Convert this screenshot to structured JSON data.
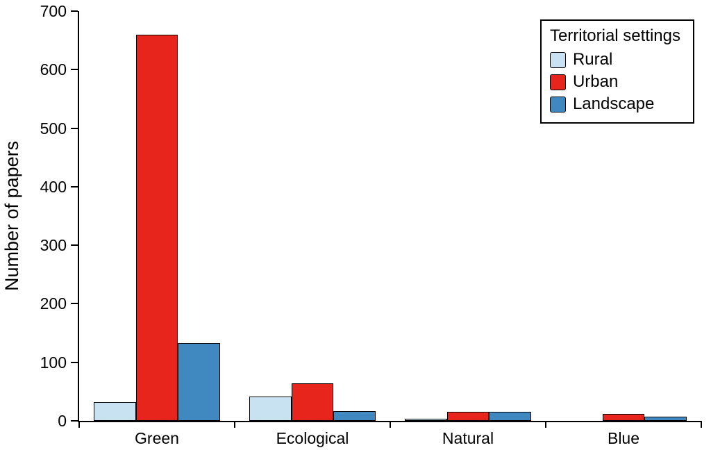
{
  "chart_data": {
    "type": "bar",
    "title": "",
    "xlabel": "",
    "ylabel": "Number of papers",
    "ylim": [
      0,
      700
    ],
    "yticks": [
      0,
      100,
      200,
      300,
      400,
      500,
      600,
      700
    ],
    "categories": [
      "Green",
      "Ecological",
      "Natural",
      "Blue"
    ],
    "series": [
      {
        "name": "Rural",
        "color": "#c9e2f2",
        "values": [
          32,
          41,
          4,
          0
        ]
      },
      {
        "name": "Urban",
        "color": "#e8251d",
        "values": [
          660,
          64,
          16,
          12
        ]
      },
      {
        "name": "Landscape",
        "color": "#3f88c0",
        "values": [
          133,
          17,
          16,
          7
        ]
      }
    ],
    "legend": {
      "title": "Territorial settings",
      "position": "top-right"
    },
    "grid": false,
    "bar_edge_color": "#000000"
  }
}
